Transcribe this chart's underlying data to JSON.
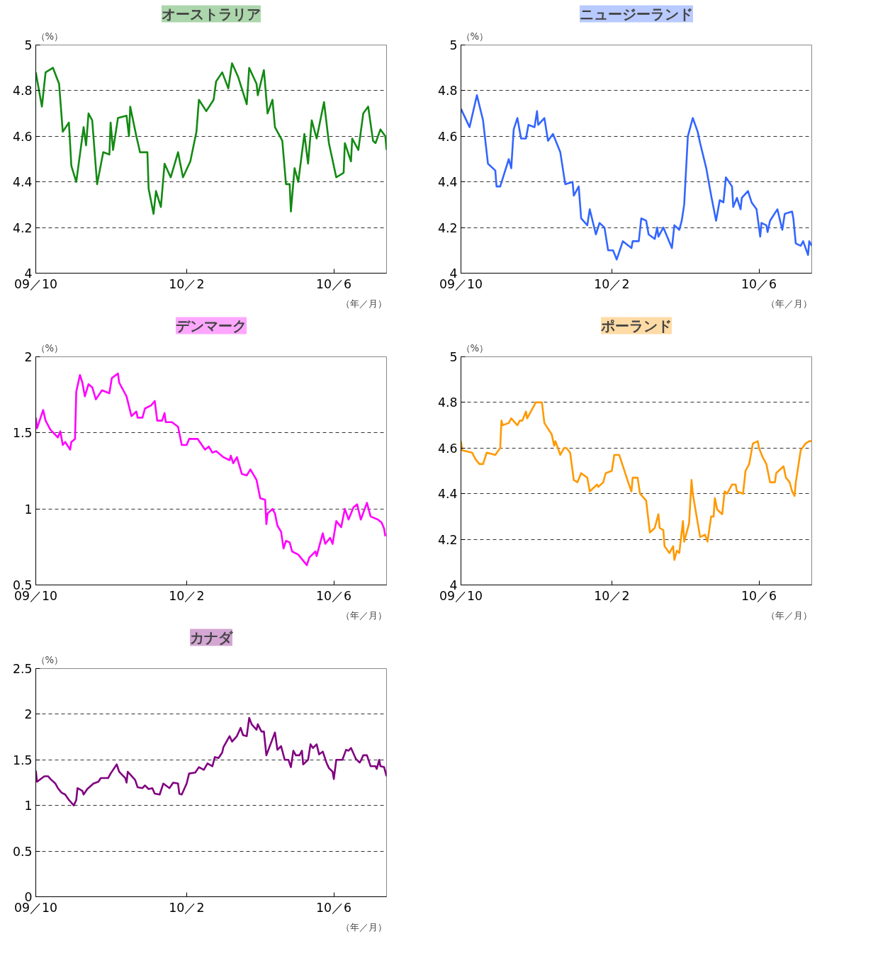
{
  "chart_data": [
    {
      "type": "line",
      "title": "オーストラリア",
      "ylabel": "（%）",
      "xlabel": "（年／月）",
      "grid": "y",
      "xlim": [
        "2009-10-01",
        "2010-07-14"
      ],
      "ylim": [
        4,
        5
      ],
      "yticks": [
        4,
        4.2,
        4.4,
        4.6,
        4.8,
        5
      ],
      "xticks": [
        {
          "value": "2009-10-01",
          "label": "09／10"
        },
        {
          "value": "2010-02-01",
          "label": "10／2"
        },
        {
          "value": "2010-06-01",
          "label": "10／6"
        }
      ],
      "x": [
        "2009-10-01",
        "2009-10-06",
        "2009-10-09",
        "2009-10-15",
        "2009-10-20",
        "2009-10-23",
        "2009-10-28",
        "2009-10-30",
        "2009-11-03",
        "2009-11-09",
        "2009-11-11",
        "2009-11-13",
        "2009-11-16",
        "2009-11-20",
        "2009-11-25",
        "2009-11-30",
        "2009-12-01",
        "2009-12-03",
        "2009-12-07",
        "2009-12-14",
        "2009-12-16",
        "2009-12-17",
        "2009-12-22",
        "2009-12-25",
        "2009-12-31",
        "2010-01-01",
        "2010-01-05",
        "2010-01-07",
        "2010-01-11",
        "2010-01-14",
        "2010-01-19",
        "2010-01-25",
        "2010-01-29",
        "2010-02-04",
        "2010-02-09",
        "2010-02-11",
        "2010-02-17",
        "2010-02-23",
        "2010-02-25",
        "2010-03-02",
        "2010-03-07",
        "2010-03-10",
        "2010-03-15",
        "2010-03-22",
        "2010-03-24",
        "2010-03-30",
        "2010-03-31",
        "2010-04-05",
        "2010-04-08",
        "2010-04-12",
        "2010-04-14",
        "2010-04-20",
        "2010-04-23",
        "2010-04-26",
        "2010-04-27",
        "2010-04-30",
        "2010-05-03",
        "2010-05-08",
        "2010-05-11",
        "2010-05-14",
        "2010-05-18",
        "2010-05-24",
        "2010-05-28",
        "2010-06-03",
        "2010-06-09",
        "2010-06-10",
        "2010-06-15",
        "2010-06-16",
        "2010-06-21",
        "2010-06-25",
        "2010-06-29",
        "2010-07-03",
        "2010-07-05",
        "2010-07-09",
        "2010-07-13",
        "2010-07-14"
      ],
      "series": [
        {
          "color": "#128a12",
          "values": [
            4.88,
            4.73,
            4.88,
            4.9,
            4.83,
            4.62,
            4.66,
            4.47,
            4.4,
            4.64,
            4.56,
            4.7,
            4.67,
            4.39,
            4.53,
            4.52,
            4.66,
            4.54,
            4.68,
            4.69,
            4.6,
            4.73,
            4.6,
            4.53,
            4.53,
            4.37,
            4.26,
            4.36,
            4.29,
            4.48,
            4.42,
            4.53,
            4.42,
            4.49,
            4.62,
            4.76,
            4.71,
            4.76,
            4.84,
            4.88,
            4.81,
            4.92,
            4.86,
            4.74,
            4.9,
            4.83,
            4.78,
            4.89,
            4.7,
            4.76,
            4.64,
            4.58,
            4.39,
            4.39,
            4.27,
            4.46,
            4.4,
            4.61,
            4.48,
            4.67,
            4.59,
            4.75,
            4.57,
            4.42,
            4.44,
            4.57,
            4.49,
            4.59,
            4.54,
            4.7,
            4.73,
            4.58,
            4.57,
            4.63,
            4.6,
            4.54
          ]
        }
      ]
    },
    {
      "type": "line",
      "title": "ニュージーランド",
      "ylabel": "（%）",
      "xlabel": "（年／月）",
      "grid": "y",
      "xlim": [
        "2009-10-01",
        "2010-07-14"
      ],
      "ylim": [
        4,
        5
      ],
      "yticks": [
        4,
        4.2,
        4.4,
        4.6,
        4.8,
        5
      ],
      "xticks": [
        {
          "value": "2009-10-01",
          "label": "09／10"
        },
        {
          "value": "2010-02-01",
          "label": "10／2"
        },
        {
          "value": "2010-06-01",
          "label": "10／6"
        }
      ],
      "x": [
        "2009-10-01",
        "2009-10-08",
        "2009-10-14",
        "2009-10-19",
        "2009-10-23",
        "2009-10-29",
        "2009-10-30",
        "2009-11-02",
        "2009-11-09",
        "2009-11-11",
        "2009-11-13",
        "2009-11-16",
        "2009-11-19",
        "2009-11-23",
        "2009-11-25",
        "2009-11-30",
        "2009-12-02",
        "2009-12-03",
        "2009-12-08",
        "2009-12-11",
        "2009-12-15",
        "2009-12-21",
        "2009-12-25",
        "2009-12-31",
        "2010-01-01",
        "2010-01-05",
        "2010-01-07",
        "2010-01-12",
        "2010-01-14",
        "2010-01-19",
        "2010-01-22",
        "2010-01-26",
        "2010-01-29",
        "2010-02-02",
        "2010-02-05",
        "2010-02-10",
        "2010-02-17",
        "2010-02-18",
        "2010-02-23",
        "2010-02-25",
        "2010-03-01",
        "2010-03-03",
        "2010-03-08",
        "2010-03-10",
        "2010-03-11",
        "2010-03-15",
        "2010-03-22",
        "2010-03-24",
        "2010-03-28",
        "2010-03-30",
        "2010-04-01",
        "2010-04-04",
        "2010-04-08",
        "2010-04-12",
        "2010-04-14",
        "2010-04-19",
        "2010-04-21",
        "2010-04-23",
        "2010-04-27",
        "2010-04-30",
        "2010-05-03",
        "2010-05-05",
        "2010-05-10",
        "2010-05-11",
        "2010-05-14",
        "2010-05-17",
        "2010-05-18",
        "2010-05-23",
        "2010-05-26",
        "2010-05-30",
        "2010-06-02",
        "2010-06-03",
        "2010-06-07",
        "2010-06-08",
        "2010-06-10",
        "2010-06-16",
        "2010-06-20",
        "2010-06-22",
        "2010-06-28",
        "2010-06-29",
        "2010-07-01",
        "2010-07-05",
        "2010-07-07",
        "2010-07-09",
        "2010-07-11",
        "2010-07-12",
        "2010-07-14"
      ],
      "series": [
        {
          "color": "#3366ff",
          "values": [
            4.72,
            4.64,
            4.78,
            4.67,
            4.48,
            4.45,
            4.38,
            4.38,
            4.5,
            4.46,
            4.63,
            4.68,
            4.59,
            4.59,
            4.65,
            4.64,
            4.71,
            4.65,
            4.68,
            4.58,
            4.61,
            4.53,
            4.39,
            4.4,
            4.34,
            4.38,
            4.24,
            4.21,
            4.28,
            4.17,
            4.22,
            4.2,
            4.1,
            4.1,
            4.06,
            4.14,
            4.11,
            4.14,
            4.14,
            4.24,
            4.23,
            4.17,
            4.15,
            4.2,
            4.16,
            4.2,
            4.11,
            4.21,
            4.19,
            4.23,
            4.3,
            4.6,
            4.68,
            4.62,
            4.57,
            4.46,
            4.4,
            4.34,
            4.23,
            4.32,
            4.31,
            4.42,
            4.38,
            4.29,
            4.33,
            4.28,
            4.33,
            4.36,
            4.31,
            4.28,
            4.16,
            4.22,
            4.21,
            4.18,
            4.23,
            4.28,
            4.19,
            4.26,
            4.27,
            4.24,
            4.13,
            4.12,
            4.14,
            4.11,
            4.08,
            4.14,
            4.12
          ]
        }
      ]
    },
    {
      "type": "line",
      "title": "デンマーク",
      "ylabel": "（%）",
      "xlabel": "（年／月）",
      "grid": "y",
      "xlim": [
        "2009-10-01",
        "2010-07-14"
      ],
      "ylim": [
        0.5,
        2
      ],
      "yticks": [
        0.5,
        1,
        1.5,
        2
      ],
      "xticks": [
        {
          "value": "2009-10-01",
          "label": "09／10"
        },
        {
          "value": "2010-02-01",
          "label": "10／2"
        },
        {
          "value": "2010-06-01",
          "label": "10／6"
        }
      ],
      "x": [
        "2009-10-01",
        "2009-10-02",
        "2009-10-07",
        "2009-10-09",
        "2009-10-13",
        "2009-10-19",
        "2009-10-21",
        "2009-10-23",
        "2009-10-25",
        "2009-10-29",
        "2009-10-30",
        "2009-11-02",
        "2009-11-03",
        "2009-11-06",
        "2009-11-08",
        "2009-11-10",
        "2009-11-13",
        "2009-11-16",
        "2009-11-19",
        "2009-11-24",
        "2009-11-30",
        "2009-12-02",
        "2009-12-07",
        "2009-12-08",
        "2009-12-14",
        "2009-12-18",
        "2009-12-22",
        "2009-12-23",
        "2009-12-27",
        "2009-12-29",
        "2010-01-03",
        "2010-01-06",
        "2010-01-08",
        "2010-01-12",
        "2010-01-14",
        "2010-01-15",
        "2010-01-20",
        "2010-01-25",
        "2010-01-28",
        "2010-02-01",
        "2010-02-03",
        "2010-02-10",
        "2010-02-16",
        "2010-02-19",
        "2010-02-22",
        "2010-02-25",
        "2010-03-03",
        "2010-03-08",
        "2010-03-09",
        "2010-03-11",
        "2010-03-14",
        "2010-03-18",
        "2010-03-22",
        "2010-03-25",
        "2010-03-30",
        "2010-04-02",
        "2010-04-06",
        "2010-04-07",
        "2010-04-08",
        "2010-04-12",
        "2010-04-14",
        "2010-04-16",
        "2010-04-19",
        "2010-04-21",
        "2010-04-23",
        "2010-04-26",
        "2010-04-28",
        "2010-05-03",
        "2010-05-07",
        "2010-05-10",
        "2010-05-12",
        "2010-05-17",
        "2010-05-18",
        "2010-05-21",
        "2010-05-23",
        "2010-05-25",
        "2010-05-29",
        "2010-05-31",
        "2010-06-03",
        "2010-06-07",
        "2010-06-10",
        "2010-06-13",
        "2010-06-17",
        "2010-06-20",
        "2010-06-23",
        "2010-06-28",
        "2010-07-01",
        "2010-07-07",
        "2010-07-10",
        "2010-07-12",
        "2010-07-13"
      ],
      "series": [
        {
          "color": "#ff00ff",
          "values": [
            1.6,
            1.53,
            1.65,
            1.58,
            1.52,
            1.47,
            1.51,
            1.42,
            1.44,
            1.39,
            1.44,
            1.46,
            1.77,
            1.88,
            1.83,
            1.74,
            1.82,
            1.8,
            1.72,
            1.78,
            1.76,
            1.86,
            1.89,
            1.83,
            1.74,
            1.61,
            1.64,
            1.6,
            1.6,
            1.66,
            1.68,
            1.71,
            1.58,
            1.58,
            1.63,
            1.57,
            1.57,
            1.54,
            1.42,
            1.42,
            1.46,
            1.46,
            1.39,
            1.41,
            1.37,
            1.38,
            1.34,
            1.32,
            1.35,
            1.3,
            1.34,
            1.23,
            1.22,
            1.26,
            1.19,
            1.07,
            1.06,
            0.9,
            0.97,
            1.0,
            0.97,
            0.89,
            0.85,
            0.74,
            0.79,
            0.78,
            0.72,
            0.7,
            0.66,
            0.63,
            0.68,
            0.72,
            0.69,
            0.78,
            0.84,
            0.77,
            0.81,
            0.77,
            0.92,
            0.88,
            1.0,
            0.93,
            1.01,
            1.03,
            0.93,
            1.04,
            0.95,
            0.93,
            0.91,
            0.87,
            0.82
          ]
        }
      ]
    },
    {
      "type": "line",
      "title": "ポーランド",
      "ylabel": "（%）",
      "xlabel": "（年／月）",
      "grid": "y",
      "xlim": [
        "2009-10-01",
        "2010-07-14"
      ],
      "ylim": [
        4,
        5
      ],
      "yticks": [
        4,
        4.2,
        4.4,
        4.6,
        4.8,
        5
      ],
      "xticks": [
        {
          "value": "2009-10-01",
          "label": "09／10"
        },
        {
          "value": "2010-02-01",
          "label": "10／2"
        },
        {
          "value": "2010-06-01",
          "label": "10／6"
        }
      ],
      "x": [
        "2009-10-01",
        "2009-10-02",
        "2009-10-10",
        "2009-10-13",
        "2009-10-16",
        "2009-10-19",
        "2009-10-22",
        "2009-10-29",
        "2009-11-02",
        "2009-11-03",
        "2009-11-04",
        "2009-11-09",
        "2009-11-11",
        "2009-11-16",
        "2009-11-18",
        "2009-11-20",
        "2009-11-23",
        "2009-11-24",
        "2009-12-01",
        "2009-12-06",
        "2009-12-08",
        "2009-12-14",
        "2009-12-16",
        "2009-12-17",
        "2009-12-21",
        "2009-12-24",
        "2009-12-26",
        "2009-12-29",
        "2010-01-01",
        "2010-01-04",
        "2010-01-07",
        "2010-01-12",
        "2010-01-14",
        "2010-01-20",
        "2010-01-21",
        "2010-01-25",
        "2010-01-27",
        "2010-02-01",
        "2010-02-03",
        "2010-02-07",
        "2010-02-15",
        "2010-02-17",
        "2010-02-18",
        "2010-02-22",
        "2010-02-24",
        "2010-03-01",
        "2010-03-04",
        "2010-03-08",
        "2010-03-11",
        "2010-03-12",
        "2010-03-15",
        "2010-03-16",
        "2010-03-20",
        "2010-03-23",
        "2010-03-24",
        "2010-03-26",
        "2010-03-28",
        "2010-03-31",
        "2010-04-01",
        "2010-04-05",
        "2010-04-07",
        "2010-04-08",
        "2010-04-14",
        "2010-04-18",
        "2010-04-20",
        "2010-04-23",
        "2010-04-25",
        "2010-04-26",
        "2010-04-28",
        "2010-05-02",
        "2010-05-04",
        "2010-05-06",
        "2010-05-10",
        "2010-05-13",
        "2010-05-14",
        "2010-05-19",
        "2010-05-21",
        "2010-05-24",
        "2010-05-27",
        "2010-05-31",
        "2010-06-01",
        "2010-06-04",
        "2010-06-07",
        "2010-06-10",
        "2010-06-14",
        "2010-06-15",
        "2010-06-21",
        "2010-06-23",
        "2010-06-26",
        "2010-06-28",
        "2010-06-30",
        "2010-07-01",
        "2010-07-05",
        "2010-07-09",
        "2010-07-12",
        "2010-07-14"
      ],
      "series": [
        {
          "color": "#ff9900",
          "values": [
            4.63,
            4.59,
            4.58,
            4.55,
            4.53,
            4.53,
            4.58,
            4.57,
            4.6,
            4.72,
            4.7,
            4.71,
            4.73,
            4.7,
            4.72,
            4.72,
            4.76,
            4.73,
            4.8,
            4.8,
            4.71,
            4.66,
            4.61,
            4.63,
            4.57,
            4.6,
            4.6,
            4.58,
            4.46,
            4.45,
            4.49,
            4.47,
            4.41,
            4.44,
            4.43,
            4.45,
            4.49,
            4.5,
            4.57,
            4.57,
            4.44,
            4.41,
            4.47,
            4.47,
            4.4,
            4.37,
            4.23,
            4.25,
            4.31,
            4.25,
            4.24,
            4.17,
            4.14,
            4.17,
            4.11,
            4.15,
            4.14,
            4.28,
            4.19,
            4.27,
            4.46,
            4.4,
            4.21,
            4.22,
            4.19,
            4.3,
            4.3,
            4.38,
            4.33,
            4.31,
            4.41,
            4.4,
            4.44,
            4.44,
            4.41,
            4.4,
            4.5,
            4.53,
            4.62,
            4.63,
            4.6,
            4.56,
            4.53,
            4.45,
            4.45,
            4.49,
            4.52,
            4.47,
            4.45,
            4.41,
            4.39,
            4.45,
            4.59,
            4.62,
            4.63,
            4.63
          ]
        }
      ]
    },
    {
      "type": "line",
      "title": "カナダ",
      "ylabel": "（%）",
      "xlabel": "（年／月）",
      "grid": "y",
      "xlim": [
        "2009-10-01",
        "2010-07-14"
      ],
      "ylim": [
        0,
        2.5
      ],
      "yticks": [
        0,
        0.5,
        1,
        1.5,
        2,
        2.5
      ],
      "xticks": [
        {
          "value": "2009-10-01",
          "label": "09／10"
        },
        {
          "value": "2010-02-01",
          "label": "10／2"
        },
        {
          "value": "2010-06-01",
          "label": "10／6"
        }
      ],
      "x": [
        "2009-10-01",
        "2009-10-02",
        "2009-10-08",
        "2009-10-11",
        "2009-10-13",
        "2009-10-17",
        "2009-10-19",
        "2009-10-22",
        "2009-10-25",
        "2009-10-28",
        "2009-11-01",
        "2009-11-03",
        "2009-11-04",
        "2009-11-08",
        "2009-11-09",
        "2009-11-12",
        "2009-11-17",
        "2009-11-21",
        "2009-11-23",
        "2009-11-29",
        "2009-12-01",
        "2009-12-06",
        "2009-12-08",
        "2009-12-13",
        "2009-12-14",
        "2009-12-15",
        "2009-12-21",
        "2009-12-23",
        "2009-12-27",
        "2009-12-29",
        "2010-01-01",
        "2010-01-04",
        "2010-01-06",
        "2010-01-10",
        "2010-01-13",
        "2010-01-18",
        "2010-01-21",
        "2010-01-25",
        "2010-01-26",
        "2010-01-28",
        "2010-02-01",
        "2010-02-03",
        "2010-02-08",
        "2010-02-11",
        "2010-02-15",
        "2010-02-18",
        "2010-02-22",
        "2010-02-24",
        "2010-02-27",
        "2010-03-02",
        "2010-03-03",
        "2010-03-08",
        "2010-03-10",
        "2010-03-14",
        "2010-03-17",
        "2010-03-19",
        "2010-03-22",
        "2010-03-24",
        "2010-03-26",
        "2010-03-30",
        "2010-03-31",
        "2010-04-03",
        "2010-04-05",
        "2010-04-06",
        "2010-04-07",
        "2010-04-14",
        "2010-04-16",
        "2010-04-19",
        "2010-04-22",
        "2010-04-25",
        "2010-04-27",
        "2010-04-29",
        "2010-05-01",
        "2010-05-04",
        "2010-05-06",
        "2010-05-07",
        "2010-05-11",
        "2010-05-13",
        "2010-05-15",
        "2010-05-18",
        "2010-05-20",
        "2010-05-23",
        "2010-05-26",
        "2010-05-28",
        "2010-05-31",
        "2010-06-01",
        "2010-06-03",
        "2010-06-08",
        "2010-06-11",
        "2010-06-13",
        "2010-06-15",
        "2010-06-19",
        "2010-06-22",
        "2010-06-23",
        "2010-06-25",
        "2010-06-28",
        "2010-07-01",
        "2010-07-05",
        "2010-07-06",
        "2010-07-08",
        "2010-07-09",
        "2010-07-12",
        "2010-07-14"
      ],
      "series": [
        {
          "color": "#800080",
          "values": [
            1.38,
            1.26,
            1.32,
            1.32,
            1.29,
            1.24,
            1.19,
            1.14,
            1.12,
            1.06,
            1.0,
            1.06,
            1.19,
            1.16,
            1.12,
            1.18,
            1.24,
            1.26,
            1.3,
            1.3,
            1.35,
            1.45,
            1.37,
            1.3,
            1.25,
            1.37,
            1.28,
            1.2,
            1.19,
            1.22,
            1.18,
            1.19,
            1.13,
            1.12,
            1.24,
            1.19,
            1.25,
            1.24,
            1.13,
            1.12,
            1.24,
            1.35,
            1.36,
            1.42,
            1.39,
            1.46,
            1.43,
            1.53,
            1.52,
            1.58,
            1.64,
            1.76,
            1.7,
            1.76,
            1.85,
            1.77,
            1.76,
            1.96,
            1.89,
            1.83,
            1.89,
            1.81,
            1.81,
            1.68,
            1.55,
            1.8,
            1.61,
            1.65,
            1.5,
            1.5,
            1.42,
            1.6,
            1.55,
            1.55,
            1.6,
            1.45,
            1.5,
            1.67,
            1.63,
            1.67,
            1.56,
            1.59,
            1.47,
            1.41,
            1.37,
            1.29,
            1.5,
            1.5,
            1.61,
            1.6,
            1.63,
            1.51,
            1.47,
            1.49,
            1.55,
            1.55,
            1.43,
            1.43,
            1.4,
            1.5,
            1.43,
            1.42,
            1.32
          ]
        }
      ]
    }
  ]
}
